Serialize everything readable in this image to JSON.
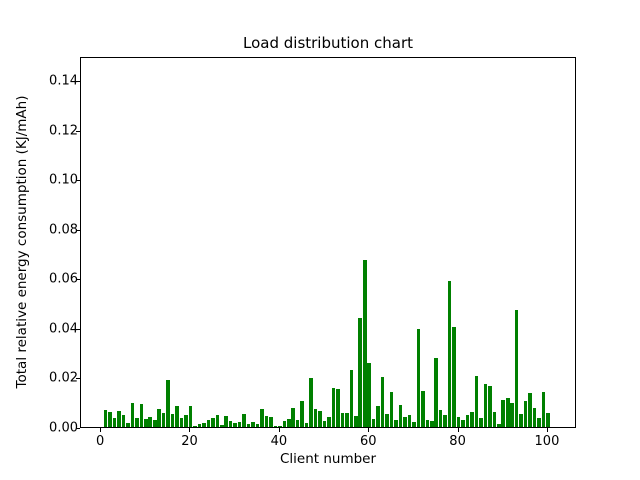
{
  "chart_data": {
    "type": "bar",
    "title": "Load distribution chart",
    "xlabel": "Client number",
    "ylabel": "Total relative energy consumption (KJ/mAh)",
    "bar_color": "#008000",
    "grid": false,
    "legend_position": "none",
    "xlim": [
      -4.5,
      106.5
    ],
    "ylim": [
      0,
      0.1497
    ],
    "x_ticks": [
      0,
      20,
      40,
      60,
      80,
      100
    ],
    "x_tick_labels": [
      "0",
      "20",
      "40",
      "60",
      "80",
      "100"
    ],
    "y_ticks": [
      0.0,
      0.02,
      0.04,
      0.06,
      0.08,
      0.1,
      0.12,
      0.14
    ],
    "y_tick_labels": [
      "0.00",
      "0.02",
      "0.04",
      "0.06",
      "0.08",
      "0.10",
      "0.12",
      "0.14"
    ],
    "bar_width": 0.8,
    "x": [
      1,
      2,
      3,
      4,
      5,
      6,
      7,
      8,
      9,
      10,
      11,
      12,
      13,
      14,
      15,
      16,
      17,
      18,
      19,
      20,
      21,
      22,
      23,
      24,
      25,
      26,
      27,
      28,
      29,
      30,
      31,
      32,
      33,
      34,
      35,
      36,
      37,
      38,
      39,
      40,
      41,
      42,
      43,
      44,
      45,
      46,
      47,
      48,
      49,
      50,
      51,
      52,
      53,
      54,
      55,
      56,
      57,
      58,
      59,
      60,
      61,
      62,
      63,
      64,
      65,
      66,
      67,
      68,
      69,
      70,
      71,
      72,
      73,
      74,
      75,
      76,
      77,
      78,
      79,
      80,
      81,
      82,
      83,
      84,
      85,
      86,
      87,
      88,
      89,
      90,
      91,
      92,
      93,
      94,
      95,
      96,
      97,
      98,
      99,
      100
    ],
    "values": [
      0.0069,
      0.0059,
      0.0036,
      0.0063,
      0.0048,
      0.0015,
      0.0096,
      0.0035,
      0.0092,
      0.0032,
      0.004,
      0.003,
      0.0073,
      0.0055,
      0.0191,
      0.0053,
      0.0086,
      0.0036,
      0.005,
      0.0086,
      0.0005,
      0.0013,
      0.0015,
      0.0028,
      0.0038,
      0.005,
      0.0008,
      0.0043,
      0.0026,
      0.0016,
      0.0021,
      0.0053,
      0.0012,
      0.0021,
      0.0012,
      0.0073,
      0.0046,
      0.0042,
      0.0004,
      0.0006,
      0.0025,
      0.0032,
      0.0077,
      0.003,
      0.0106,
      0.0015,
      0.0197,
      0.0073,
      0.0066,
      0.0026,
      0.004,
      0.0156,
      0.0152,
      0.0057,
      0.0057,
      0.0232,
      0.0046,
      0.0441,
      0.0675,
      0.0259,
      0.0032,
      0.0086,
      0.0203,
      0.0053,
      0.014,
      0.003,
      0.0089,
      0.004,
      0.0048,
      0.002,
      0.0396,
      0.0147,
      0.003,
      0.0023,
      0.0277,
      0.0069,
      0.005,
      0.0589,
      0.0403,
      0.0042,
      0.003,
      0.005,
      0.0062,
      0.0207,
      0.0035,
      0.0174,
      0.0164,
      0.0059,
      0.0012,
      0.0107,
      0.0116,
      0.0098,
      0.0471,
      0.0053,
      0.0106,
      0.0136,
      0.0077,
      0.0035,
      0.0143,
      0.0057
    ]
  }
}
